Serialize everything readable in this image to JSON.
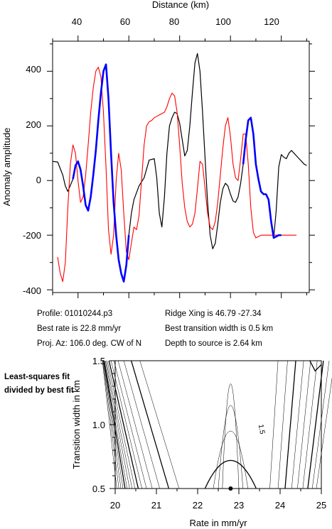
{
  "chart_data": [
    {
      "type": "line",
      "xlabel": "Distance (km)",
      "ylabel": "Anomaly amplitude",
      "xlim": [
        30,
        131
      ],
      "ylim": [
        -410,
        510
      ],
      "x_ticks": [
        40,
        60,
        80,
        100,
        120
      ],
      "y_ticks": [
        -400,
        -200,
        0,
        200,
        400
      ],
      "series": [
        {
          "color": "#000000",
          "x": [
            30,
            32,
            34,
            35,
            36,
            38,
            39,
            40,
            41,
            42,
            43,
            44,
            45,
            46,
            47,
            48,
            49,
            50,
            51,
            52,
            53,
            54,
            55,
            56,
            57,
            58,
            59,
            60,
            61,
            62,
            64,
            66,
            68,
            70,
            71,
            72,
            73,
            74,
            75,
            76,
            77,
            78,
            79,
            80,
            81,
            82,
            83,
            84,
            85,
            86,
            87,
            88,
            89,
            90,
            91,
            92,
            93,
            94,
            95,
            96,
            97,
            98,
            99,
            100,
            101,
            102,
            103,
            104,
            105,
            106,
            107,
            108,
            109,
            110,
            111,
            112,
            113,
            114,
            115,
            116,
            117,
            118,
            119,
            120,
            121,
            122,
            123,
            124,
            125,
            126,
            127,
            128,
            129,
            130
          ],
          "y": [
            70,
            68,
            20,
            -20,
            -40,
            5,
            55,
            70,
            40,
            -20,
            -90,
            -110,
            -60,
            20,
            110,
            220,
            320,
            400,
            420,
            300,
            100,
            -80,
            -200,
            -290,
            -340,
            -370,
            -310,
            -200,
            -120,
            -70,
            -20,
            10,
            75,
            80,
            10,
            -120,
            -170,
            -60,
            100,
            200,
            230,
            250,
            245,
            210,
            150,
            90,
            110,
            200,
            320,
            430,
            465,
            400,
            250,
            80,
            -80,
            -200,
            -250,
            -230,
            -160,
            -80,
            -30,
            -10,
            -20,
            -50,
            -75,
            -80,
            -60,
            -10,
            60,
            150,
            220,
            230,
            170,
            60,
            5,
            -40,
            -50,
            -50,
            -70,
            -150,
            -210,
            -110,
            50,
            95,
            85,
            80,
            100,
            110,
            100,
            90,
            80,
            70,
            60,
            55
          ]
        },
        {
          "color": "#ff0000",
          "x": [
            32,
            33,
            34,
            35,
            36,
            37,
            38,
            39,
            40,
            41,
            42,
            43,
            44,
            45,
            46,
            47,
            48,
            49,
            50,
            51,
            52,
            53,
            54,
            55,
            56,
            57,
            58,
            59,
            60,
            61,
            62,
            63,
            64,
            65,
            66,
            67,
            68,
            69,
            70,
            71,
            72,
            73,
            74,
            75,
            76,
            77,
            78,
            79,
            80,
            81,
            82,
            83,
            84,
            85,
            86,
            87,
            88,
            89,
            90,
            91,
            92,
            93,
            94,
            95,
            96,
            97,
            98,
            99,
            100,
            101,
            102,
            103,
            104,
            105,
            106,
            107,
            108,
            109,
            110,
            111,
            112,
            113,
            114,
            115,
            116,
            117,
            118,
            119,
            120,
            121,
            122,
            123,
            124,
            125,
            126
          ],
          "y": [
            -280,
            -340,
            -370,
            -300,
            -100,
            60,
            130,
            100,
            0,
            -80,
            -60,
            20,
            130,
            250,
            340,
            400,
            415,
            380,
            250,
            50,
            -180,
            -270,
            -200,
            0,
            100,
            40,
            -120,
            -260,
            -290,
            -230,
            -170,
            -180,
            -130,
            0,
            130,
            200,
            215,
            220,
            230,
            235,
            240,
            245,
            250,
            270,
            300,
            320,
            310,
            250,
            130,
            -10,
            -100,
            -150,
            -170,
            -160,
            -120,
            -30,
            70,
            60,
            -30,
            -120,
            -170,
            -180,
            -150,
            -80,
            20,
            120,
            200,
            230,
            160,
            60,
            10,
            0,
            80,
            170,
            170,
            60,
            -100,
            -190,
            -210,
            -205,
            -200,
            -200,
            -200,
            -200,
            -200,
            -200,
            -200,
            -200,
            -200,
            -200,
            -200,
            -200,
            -200,
            -200,
            -200
          ]
        },
        {
          "color": "#0000ff",
          "x": [
            38,
            39,
            40,
            41,
            42,
            43,
            44,
            45,
            46,
            47,
            48,
            49,
            50,
            51,
            52,
            53,
            54,
            55,
            56,
            57,
            58,
            59,
            60,
            105,
            106,
            107,
            108,
            109,
            110,
            111,
            112,
            113,
            114,
            115,
            116,
            117,
            118,
            119,
            120
          ],
          "y": [
            5,
            55,
            70,
            40,
            -20,
            -90,
            -110,
            -60,
            20,
            110,
            220,
            320,
            400,
            425,
            300,
            100,
            -80,
            -200,
            -290,
            -340,
            -370,
            -310,
            -200,
            60,
            150,
            220,
            230,
            170,
            60,
            5,
            -40,
            -50,
            -50,
            -70,
            -150,
            -210,
            -205,
            -200,
            -200
          ]
        }
      ]
    },
    {
      "type": "contour",
      "xlabel": "Rate in mm/yr",
      "ylabel": "Transition width in km",
      "xlim": [
        20,
        25
      ],
      "ylim": [
        0.5,
        1.5
      ],
      "x_ticks": [
        20,
        21,
        22,
        23,
        24,
        25
      ],
      "y_ticks": [
        0.5,
        1.0,
        1.5
      ],
      "best_fit": {
        "x": 22.8,
        "y": 0.5
      },
      "contour_label": "1.5"
    }
  ],
  "tick_labels": {
    "top_x": [
      "40",
      "60",
      "80",
      "100",
      "120"
    ],
    "left_y": [
      "400",
      "200",
      "0",
      "-200",
      "-400"
    ],
    "bottom_x": [
      "20",
      "21",
      "22",
      "23",
      "24",
      "25"
    ],
    "bottom_y": [
      "1.5",
      "1.0",
      "0.5"
    ]
  },
  "titles": {
    "top_xlabel": "Distance (km)",
    "top_ylabel": "Anomaly amplitude",
    "bottom_xlabel": "Rate in mm/yr",
    "bottom_ylabel": "Transition width in km"
  },
  "info": {
    "profile": "Profile: 01010244.p3",
    "best_rate": "Best rate is 22.8 mm/yr",
    "proj_az": "Proj. Az: 106.0 deg. CW of N",
    "ridge_xing": "Ridge Xing is 46.79 -27.34",
    "transition_width": "Best transition width is 0.5 km",
    "depth": "Depth to source is   2.64 km"
  },
  "side_note": "Least-squares fit divided by best fit",
  "contour_label": "1.5"
}
